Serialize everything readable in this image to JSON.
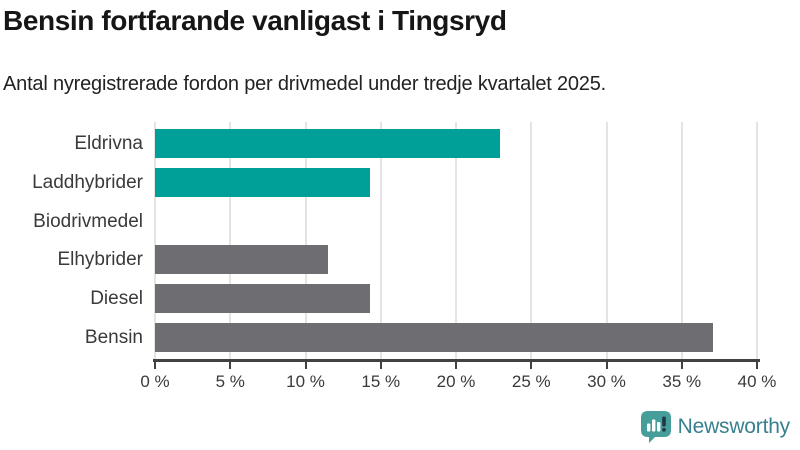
{
  "header": {
    "title": "Bensin fortfarande vanligast i Tingsryd",
    "subtitle": "Antal nyregistrerade fordon per drivmedel under tredje kvartalet 2025."
  },
  "chart_data": {
    "type": "bar",
    "orientation": "horizontal",
    "title": "Bensin fortfarande vanligast i Tingsryd",
    "subtitle": "Antal nyregistrerade fordon per drivmedel under tredje kvartalet 2025.",
    "categories": [
      "Eldrivna",
      "Laddhybrider",
      "Biodrivmedel",
      "Elhybrider",
      "Diesel",
      "Bensin"
    ],
    "values": [
      22.9,
      14.3,
      0,
      11.5,
      14.3,
      37.1
    ],
    "bar_colors": [
      "#00a099",
      "#00a099",
      "#00a099",
      "#6d6d72",
      "#6d6d72",
      "#6d6d72"
    ],
    "unit": "%",
    "xlim": [
      0,
      40
    ],
    "x_ticks": [
      0,
      5,
      10,
      15,
      20,
      25,
      30,
      35,
      40
    ],
    "x_tick_labels": [
      "0 %",
      "5 %",
      "10 %",
      "15 %",
      "20 %",
      "25 %",
      "30 %",
      "35 %",
      "40 %"
    ],
    "grid": "vertical",
    "legend": "none"
  },
  "colors": {
    "teal_bar": "#00a099",
    "gray_bar": "#6d6d72",
    "gridline": "#e4e4e4",
    "axis": "#414141",
    "title_text": "#161616",
    "label_text": "#3a3a3a"
  },
  "footer": {
    "brand": "Newsworthy",
    "brand_text_color": "#37808d",
    "logo_bubble_color": "#459e9a",
    "logo_bars_color": "#ffffff",
    "logo_exclamation_color": "#1f3848"
  }
}
